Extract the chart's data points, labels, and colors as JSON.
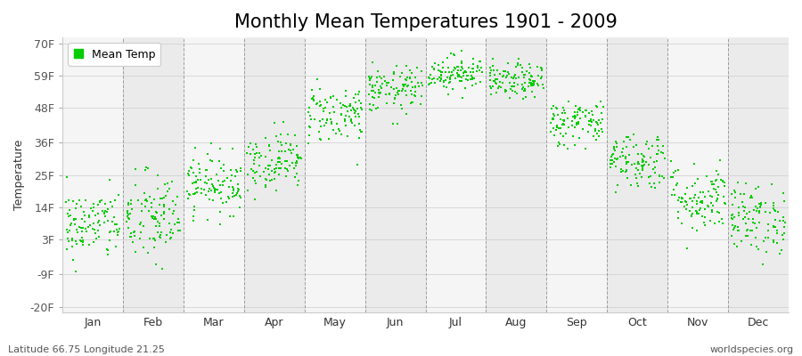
{
  "title": "Monthly Mean Temperatures 1901 - 2009",
  "ylabel": "Temperature",
  "yticks": [
    -20,
    -9,
    3,
    14,
    25,
    36,
    48,
    59,
    70
  ],
  "ytick_labels": [
    "-20F",
    "-9F",
    "3F",
    "14F",
    "25F",
    "36F",
    "48F",
    "59F",
    "70F"
  ],
  "ylim": [
    -22,
    72
  ],
  "months": [
    "Jan",
    "Feb",
    "Mar",
    "Apr",
    "May",
    "Jun",
    "Jul",
    "Aug",
    "Sep",
    "Oct",
    "Nov",
    "Dec"
  ],
  "month_means_F": [
    8,
    10,
    22,
    30,
    46,
    54,
    60,
    57,
    43,
    30,
    17,
    10
  ],
  "month_stds_F": [
    6,
    8,
    5,
    5,
    5,
    4,
    3,
    3,
    4,
    5,
    6,
    6
  ],
  "n_years": 109,
  "dot_color": "#00cc00",
  "dot_size": 3,
  "background_light": "#f5f5f5",
  "background_dark": "#ebebeb",
  "legend_label": "Mean Temp",
  "footer_left": "Latitude 66.75 Longitude 21.25",
  "footer_right": "worldspecies.org",
  "title_fontsize": 15,
  "axis_label_fontsize": 9,
  "tick_fontsize": 9,
  "footer_fontsize": 8
}
